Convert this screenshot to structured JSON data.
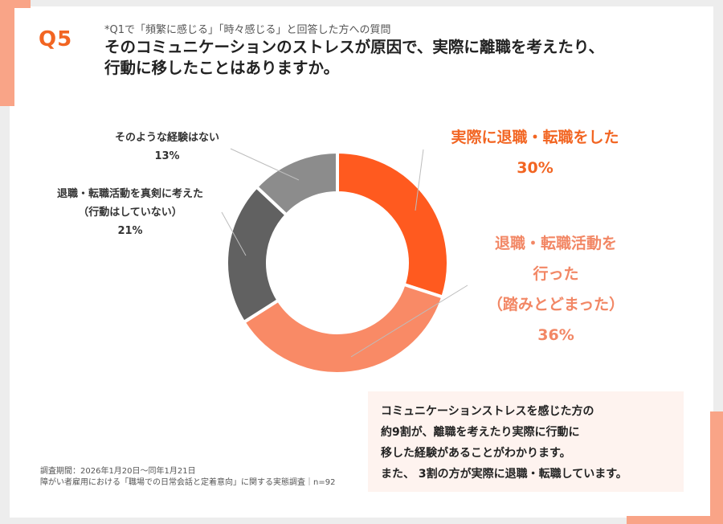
{
  "question": {
    "number": "Q5",
    "note": "*Q1で「頻繁に感じる」「時々感じる」と回答した方への質問",
    "title_line1": "そのコミュニケーションのストレスが原因で、実際に離職を考えたり、",
    "title_line2": "行動に移したことはありますか。"
  },
  "chart_data": {
    "type": "pie",
    "subtype": "donut",
    "title": "そのコミュニケーションのストレスが原因で、実際に離職を考えたり、行動に移したことはありますか。",
    "slices": [
      {
        "label": "実際に退職・転職をした",
        "value": 30,
        "color": "#ff5a1f"
      },
      {
        "label": "退職・転職活動を行った（踏みとどまった）",
        "value": 36,
        "color": "#f98a66"
      },
      {
        "label": "退職・転職活動を真剣に考えた（行動はしていない）",
        "value": 21,
        "color": "#616161"
      },
      {
        "label": "そのような経験はない",
        "value": 13,
        "color": "#8c8c8c"
      }
    ]
  },
  "labels": {
    "s1_line1": "実際に退職・転職をした",
    "s1_pct": "30%",
    "s2_line1": "退職・転職活動を",
    "s2_line2": "行った",
    "s2_line3": "（踏みとどまった）",
    "s2_pct": "36%",
    "s3_line1": "退職・転職活動を真剣に考えた",
    "s3_line2": "（行動はしていない）",
    "s3_pct": "21%",
    "s4_line1": "そのような経験はない",
    "s4_pct": "13%"
  },
  "summary": {
    "line1": "コミュニケーションストレスを感じた方の",
    "line2": "約9割が、離職を考えたり実際に行動に",
    "line3": "移した経験があることがわかります。",
    "line4": "また、 3割の方が実際に退職・転職しています。"
  },
  "footer": {
    "line1": "調査期間：2026年1月20日〜同年1月21日",
    "line2": "障がい者雇用における「職場での日常会話と定着意向」に関する実態調査｜n=92"
  }
}
